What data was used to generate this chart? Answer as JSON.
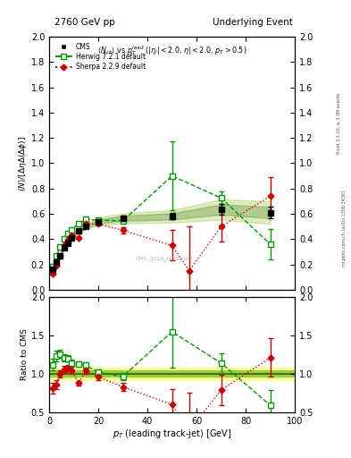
{
  "title_left": "2760 GeV pp",
  "title_right": "Underlying Event",
  "watermark": "CMS_2015_I1395107",
  "rivet_label": "Rivet 3.1.10, ≥ 3.3M events",
  "mcplots_label": "mcplots.cern.ch [arXiv:1306.3436]",
  "cms_x": [
    1.5,
    3.0,
    4.5,
    6.0,
    7.5,
    9.0,
    12.0,
    15.0,
    20.0,
    30.0,
    50.0,
    70.0,
    90.0
  ],
  "cms_y": [
    0.16,
    0.22,
    0.27,
    0.33,
    0.37,
    0.41,
    0.465,
    0.5,
    0.54,
    0.565,
    0.58,
    0.635,
    0.61
  ],
  "cms_yerrlo": [
    0.01,
    0.01,
    0.01,
    0.01,
    0.01,
    0.01,
    0.01,
    0.01,
    0.015,
    0.02,
    0.025,
    0.04,
    0.045
  ],
  "cms_yerrhi": [
    0.01,
    0.01,
    0.01,
    0.01,
    0.01,
    0.01,
    0.01,
    0.01,
    0.015,
    0.02,
    0.025,
    0.04,
    0.045
  ],
  "herwig_x": [
    1.5,
    3.0,
    4.5,
    6.0,
    7.5,
    9.0,
    12.0,
    15.0,
    20.0,
    30.0,
    50.0,
    70.0,
    90.0
  ],
  "herwig_y": [
    0.18,
    0.27,
    0.34,
    0.4,
    0.445,
    0.47,
    0.525,
    0.555,
    0.55,
    0.545,
    0.9,
    0.725,
    0.36
  ],
  "herwig_yerrlo": [
    0.01,
    0.01,
    0.01,
    0.01,
    0.01,
    0.01,
    0.01,
    0.015,
    0.015,
    0.02,
    0.27,
    0.05,
    0.12
  ],
  "herwig_yerrhi": [
    0.01,
    0.01,
    0.01,
    0.01,
    0.01,
    0.01,
    0.01,
    0.015,
    0.015,
    0.02,
    0.27,
    0.05,
    0.12
  ],
  "sherpa_x": [
    1.5,
    3.0,
    4.5,
    6.0,
    7.5,
    9.0,
    12.0,
    15.0,
    20.0,
    30.0,
    50.0,
    57.0,
    70.0,
    90.0
  ],
  "sherpa_y": [
    0.13,
    0.19,
    0.27,
    0.35,
    0.395,
    0.43,
    0.41,
    0.52,
    0.52,
    0.47,
    0.35,
    0.15,
    0.5,
    0.74
  ],
  "sherpa_yerrlo": [
    0.01,
    0.01,
    0.01,
    0.01,
    0.01,
    0.01,
    0.01,
    0.015,
    0.015,
    0.025,
    0.12,
    0.35,
    0.12,
    0.15
  ],
  "sherpa_yerrhi": [
    0.01,
    0.01,
    0.01,
    0.01,
    0.01,
    0.01,
    0.01,
    0.015,
    0.015,
    0.025,
    0.12,
    0.35,
    0.12,
    0.15
  ],
  "herwig_ratio_x": [
    1.5,
    3.0,
    4.5,
    6.0,
    7.5,
    9.0,
    12.0,
    15.0,
    20.0,
    30.0,
    50.0,
    70.0,
    90.0
  ],
  "herwig_ratio_y": [
    1.12,
    1.23,
    1.26,
    1.21,
    1.2,
    1.14,
    1.13,
    1.11,
    1.02,
    0.965,
    1.55,
    1.14,
    0.59
  ],
  "herwig_ratio_yerrlo": [
    0.08,
    0.07,
    0.05,
    0.05,
    0.04,
    0.04,
    0.03,
    0.04,
    0.04,
    0.05,
    0.47,
    0.13,
    0.2
  ],
  "herwig_ratio_yerrhi": [
    0.08,
    0.07,
    0.05,
    0.05,
    0.04,
    0.04,
    0.03,
    0.04,
    0.04,
    0.05,
    0.47,
    0.13,
    0.2
  ],
  "sherpa_ratio_x": [
    1.5,
    3.0,
    4.5,
    6.0,
    7.5,
    9.0,
    12.0,
    15.0,
    20.0,
    30.0,
    50.0,
    57.0,
    70.0,
    90.0
  ],
  "sherpa_ratio_y": [
    0.81,
    0.86,
    1.0,
    1.06,
    1.07,
    1.05,
    0.88,
    1.04,
    0.96,
    0.83,
    0.6,
    0.26,
    0.79,
    1.21
  ],
  "sherpa_ratio_yerrlo": [
    0.07,
    0.06,
    0.05,
    0.04,
    0.04,
    0.04,
    0.03,
    0.04,
    0.04,
    0.05,
    0.2,
    0.5,
    0.2,
    0.25
  ],
  "sherpa_ratio_yerrhi": [
    0.07,
    0.06,
    0.05,
    0.04,
    0.04,
    0.04,
    0.03,
    0.04,
    0.04,
    0.05,
    0.2,
    0.5,
    0.2,
    0.25
  ],
  "cms_band_yellow": "#ffff99",
  "cms_band_green": "#99cc44",
  "cms_band_dark": "#336600",
  "herwig_color": "#009900",
  "sherpa_color": "#cc0000",
  "cms_color": "#000000",
  "xlim": [
    0,
    100
  ],
  "ylim_main": [
    0.0,
    2.0
  ],
  "ylim_ratio": [
    0.5,
    2.0
  ],
  "ratio_band_yellow_lo": 0.92,
  "ratio_band_yellow_hi": 1.08,
  "ratio_band_green_lo": 0.96,
  "ratio_band_green_hi": 1.04
}
